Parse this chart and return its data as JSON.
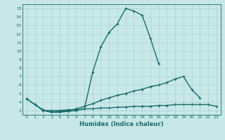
{
  "x": [
    0,
    1,
    2,
    3,
    4,
    5,
    6,
    7,
    8,
    9,
    10,
    11,
    12,
    13,
    14,
    15,
    16,
    17,
    18,
    19,
    20,
    21,
    22,
    23
  ],
  "line1": [
    4.4,
    3.7,
    3.0,
    2.8,
    2.8,
    2.9,
    3.0,
    3.2,
    7.5,
    10.5,
    12.2,
    13.2,
    15.0,
    14.7,
    14.2,
    11.5,
    8.5,
    null,
    null,
    null,
    null,
    null,
    null,
    null
  ],
  "line2": [
    4.4,
    3.7,
    3.1,
    2.8,
    2.9,
    3.0,
    3.2,
    3.5,
    3.8,
    4.2,
    4.5,
    4.8,
    5.0,
    5.3,
    5.5,
    5.8,
    6.0,
    6.3,
    6.7,
    7.0,
    5.5,
    4.5,
    null,
    null
  ],
  "line3": [
    null,
    null,
    3.0,
    3.0,
    3.0,
    3.1,
    3.1,
    3.2,
    3.2,
    3.3,
    3.3,
    3.4,
    3.4,
    3.5,
    3.5,
    3.5,
    3.6,
    3.6,
    3.7,
    3.7,
    3.7,
    3.7,
    3.7,
    3.5
  ],
  "color": "#1a6b6b",
  "bg_color": "#c8e8e8",
  "grid_color": "#aad0d0",
  "xlabel": "Humidex (Indice chaleur)",
  "ylim": [
    2.5,
    15.5
  ],
  "xlim": [
    -0.5,
    23.5
  ],
  "yticks": [
    3,
    4,
    5,
    6,
    7,
    8,
    9,
    10,
    11,
    12,
    13,
    14,
    15
  ],
  "xticks": [
    0,
    1,
    2,
    3,
    4,
    5,
    6,
    7,
    8,
    9,
    10,
    11,
    12,
    13,
    14,
    15,
    16,
    17,
    18,
    19,
    20,
    21,
    22,
    23
  ],
  "marker": "+",
  "markersize": 3.5,
  "linewidth": 1.0
}
